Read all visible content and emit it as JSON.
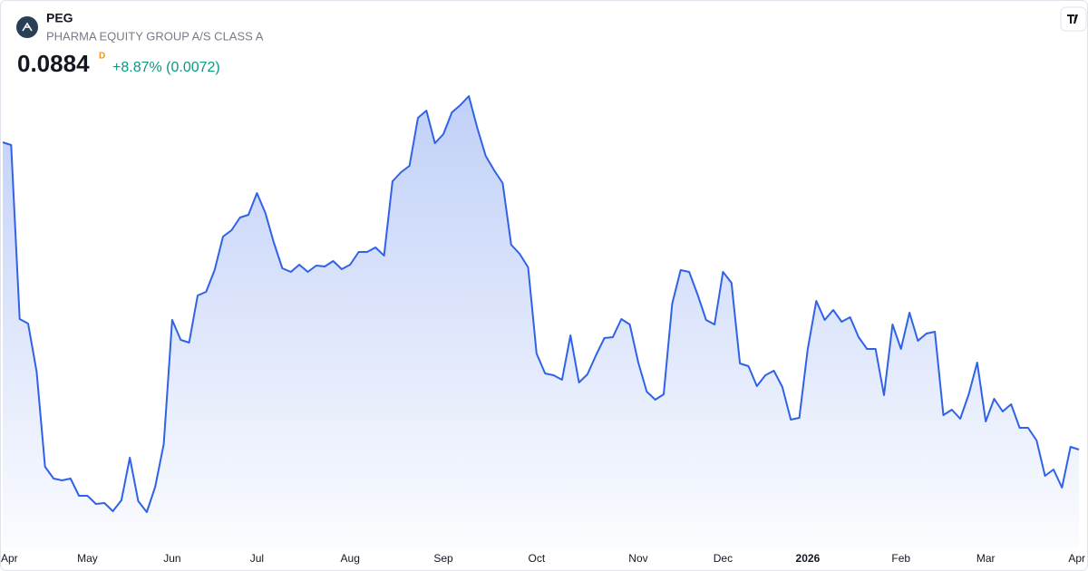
{
  "header": {
    "symbol": "PEG",
    "name": "PHARMA EQUITY GROUP A/S CLASS A",
    "price": "0.0884",
    "price_flag": "D",
    "change": "+8.87% (0.0072)"
  },
  "chart_data": {
    "type": "area",
    "color": "#2f62e6",
    "ylim": [
      0.0775,
      0.129
    ],
    "categories": [
      null,
      "Apr",
      null,
      null,
      null,
      null,
      null,
      null,
      null,
      null,
      "May",
      null,
      null,
      null,
      null,
      null,
      null,
      null,
      null,
      null,
      "Jun",
      null,
      null,
      null,
      null,
      null,
      null,
      null,
      null,
      null,
      "Jul",
      null,
      null,
      null,
      null,
      null,
      null,
      null,
      null,
      null,
      null,
      "Aug",
      null,
      null,
      null,
      null,
      null,
      null,
      null,
      null,
      null,
      null,
      "Sep",
      null,
      null,
      null,
      null,
      null,
      null,
      null,
      null,
      null,
      null,
      "Oct",
      null,
      null,
      null,
      null,
      null,
      null,
      null,
      null,
      null,
      null,
      null,
      "Nov",
      null,
      null,
      null,
      null,
      null,
      null,
      null,
      null,
      null,
      "Dec",
      null,
      null,
      null,
      null,
      null,
      null,
      null,
      null,
      null,
      "2026",
      null,
      null,
      null,
      null,
      null,
      null,
      null,
      null,
      null,
      null,
      "Feb",
      null,
      null,
      null,
      null,
      null,
      null,
      null,
      null,
      null,
      "Mar",
      null,
      null,
      null,
      null,
      null,
      null,
      null,
      null,
      null,
      null,
      "Apr"
    ],
    "values": [
      0.1223,
      0.122,
      0.1028,
      0.1023,
      0.097,
      0.0865,
      0.0852,
      0.085,
      0.0852,
      0.0833,
      0.0833,
      0.0824,
      0.0825,
      0.0816,
      0.0828,
      0.0875,
      0.0827,
      0.0815,
      0.0843,
      0.089,
      0.1027,
      0.1005,
      0.1002,
      0.1054,
      0.1058,
      0.1082,
      0.1119,
      0.1126,
      0.114,
      0.1143,
      0.1167,
      0.1145,
      0.1112,
      0.1084,
      0.108,
      0.1088,
      0.108,
      0.1087,
      0.1086,
      0.1092,
      0.1083,
      0.1088,
      0.1102,
      0.1102,
      0.1107,
      0.1098,
      0.118,
      0.119,
      0.1197,
      0.125,
      0.1258,
      0.1222,
      0.1232,
      0.1256,
      0.1264,
      0.1274,
      0.1239,
      0.1208,
      0.1192,
      0.1178,
      0.111,
      0.11,
      0.1085,
      0.099,
      0.0968,
      0.0966,
      0.0961,
      0.101,
      0.0958,
      0.0967,
      0.0988,
      0.1007,
      0.1008,
      0.1028,
      0.1022,
      0.098,
      0.0948,
      0.0939,
      0.0945,
      0.1045,
      0.1082,
      0.108,
      0.1055,
      0.1027,
      0.1022,
      0.108,
      0.1068,
      0.0979,
      0.0976,
      0.0954,
      0.0966,
      0.0971,
      0.0953,
      0.0917,
      0.0919,
      0.0995,
      0.1048,
      0.1027,
      0.1038,
      0.1025,
      0.103,
      0.1008,
      0.0995,
      0.0995,
      0.0944,
      0.1022,
      0.0995,
      0.1035,
      0.1004,
      0.1012,
      0.1014,
      0.0922,
      0.0928,
      0.0918,
      0.0945,
      0.098,
      0.0915,
      0.094,
      0.0926,
      0.0934,
      0.0908,
      0.0908,
      0.0894,
      0.0855,
      0.0862,
      0.0842,
      0.0887,
      0.0884
    ]
  }
}
